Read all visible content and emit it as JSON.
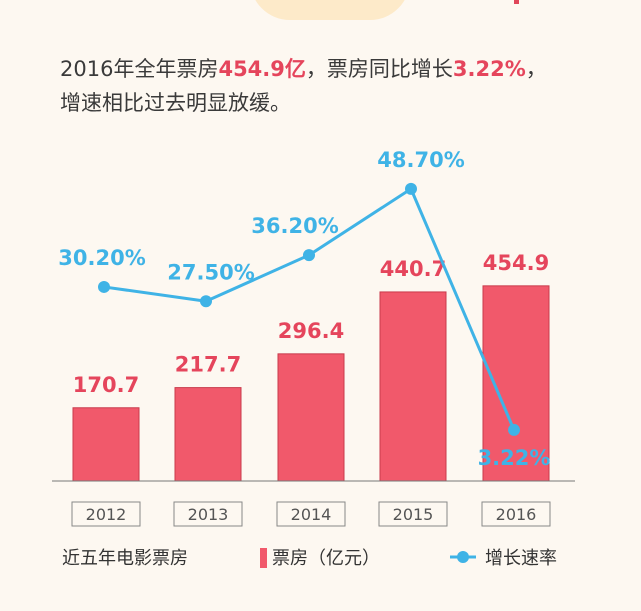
{
  "headline": {
    "line1_prefix": "2016年全年票房",
    "line1_value": "454.9亿",
    "line1_mid": "，票房同比增长",
    "line1_rate": "3.22%",
    "line1_end": "，",
    "line2": "增速相比过去明显放缓。"
  },
  "colors": {
    "bar": "#f1596b",
    "bar_outline": "#c93a4b",
    "line": "#3fb3e6",
    "bar_label": "#e5455c",
    "rate_label": "#3fb3e6"
  },
  "legend": {
    "title": "近五年电影票房",
    "bar_series": "票房（亿元）",
    "line_series": "增长速率"
  },
  "chart_data": {
    "type": "bar",
    "categories": [
      "2012",
      "2013",
      "2014",
      "2015",
      "2016"
    ],
    "series": [
      {
        "name": "票房（亿元）",
        "type": "bar",
        "values": [
          170.7,
          217.7,
          296.4,
          440.7,
          454.9
        ],
        "labels": [
          "170.7",
          "217.7",
          "296.4",
          "440.7",
          "454.9"
        ]
      },
      {
        "name": "增长速率",
        "type": "line",
        "values": [
          30.2,
          27.5,
          36.2,
          48.7,
          3.22
        ],
        "labels": [
          "30.20%",
          "27.50%",
          "36.20%",
          "48.70%",
          "3.22%"
        ]
      }
    ],
    "title": "近五年电影票房",
    "legend_position": "bottom",
    "grid": false
  }
}
